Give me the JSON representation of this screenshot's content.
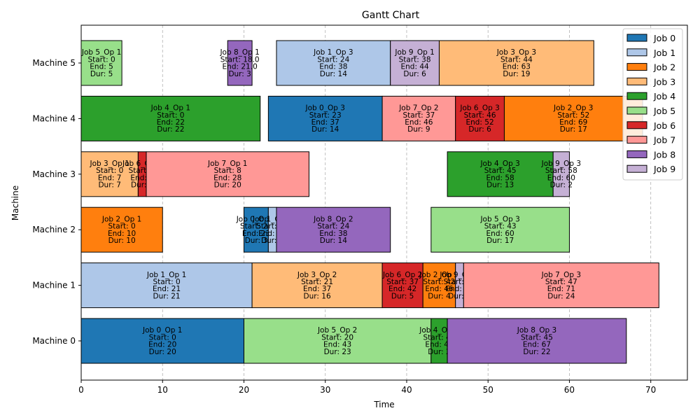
{
  "chart_data": {
    "type": "gantt",
    "title": "Gantt Chart",
    "xlabel": "Time",
    "ylabel": "Machine",
    "xlim": [
      0,
      74.5
    ],
    "xticks": [
      0,
      10,
      20,
      30,
      40,
      50,
      60,
      70
    ],
    "grid": "vertical dashed",
    "legend_position": "top-right",
    "machines": [
      "Machine 0",
      "Machine 1",
      "Machine 2",
      "Machine 3",
      "Machine 4",
      "Machine 5"
    ],
    "jobs": [
      {
        "name": "Job 0",
        "color": "#1f77b4"
      },
      {
        "name": "Job 1",
        "color": "#aec7e8"
      },
      {
        "name": "Job 2",
        "color": "#ff7f0e"
      },
      {
        "name": "Job 3",
        "color": "#ffbb78"
      },
      {
        "name": "Job 4",
        "color": "#2ca02c"
      },
      {
        "name": "Job 5",
        "color": "#98df8a"
      },
      {
        "name": "Job 6",
        "color": "#d62728"
      },
      {
        "name": "Job 7",
        "color": "#ff9896"
      },
      {
        "name": "Job 8",
        "color": "#9467bd"
      },
      {
        "name": "Job 9",
        "color": "#c5b0d5"
      }
    ],
    "tasks": [
      {
        "machine": 0,
        "job": 0,
        "op": "Job 0_Op 1",
        "start": 0,
        "end": 20,
        "dur": 20
      },
      {
        "machine": 0,
        "job": 5,
        "op": "Job 5_Op 2",
        "start": 20,
        "end": 43,
        "dur": 23
      },
      {
        "machine": 0,
        "job": 4,
        "op": "Job 4_Op 2",
        "start": 43,
        "end": 45,
        "dur": 2
      },
      {
        "machine": 0,
        "job": 8,
        "op": "Job 8_Op 3",
        "start": 45,
        "end": 67,
        "dur": 22
      },
      {
        "machine": 1,
        "job": 1,
        "op": "Job 1_Op 1",
        "start": 0,
        "end": 21,
        "dur": 21
      },
      {
        "machine": 1,
        "job": 3,
        "op": "Job 3_Op 2",
        "start": 21,
        "end": 37,
        "dur": 16
      },
      {
        "machine": 1,
        "job": 6,
        "op": "Job 6_Op 2",
        "start": 37,
        "end": 42,
        "dur": 5
      },
      {
        "machine": 1,
        "job": 2,
        "op": "Job 2_Op 2",
        "start": 42,
        "end": 46,
        "dur": 4
      },
      {
        "machine": 1,
        "job": 9,
        "op": "Job 9_Op 2",
        "start": 46,
        "end": 47,
        "dur": 1
      },
      {
        "machine": 1,
        "job": 7,
        "op": "Job 7_Op 3",
        "start": 47,
        "end": 71,
        "dur": 24
      },
      {
        "machine": 2,
        "job": 2,
        "op": "Job 2_Op 1",
        "start": 0,
        "end": 10,
        "dur": 10
      },
      {
        "machine": 2,
        "job": 0,
        "op": "Job 0_Op 2",
        "start": 20,
        "end": 23,
        "dur": 3
      },
      {
        "machine": 2,
        "job": 1,
        "op": "Job 1_Op 2",
        "start": 23,
        "end": 24,
        "dur": 1
      },
      {
        "machine": 2,
        "job": 8,
        "op": "Job 8_Op 2",
        "start": 24,
        "end": 38,
        "dur": 14
      },
      {
        "machine": 2,
        "job": 5,
        "op": "Job 5_Op 3",
        "start": 43,
        "end": 60,
        "dur": 17
      },
      {
        "machine": 3,
        "job": 3,
        "op": "Job 3_Op 1",
        "start": 0,
        "end": 7,
        "dur": 7
      },
      {
        "machine": 3,
        "job": 6,
        "op": "Job 6_Op 1",
        "start": 7,
        "end": 8,
        "dur": 1
      },
      {
        "machine": 3,
        "job": 7,
        "op": "Job 7_Op 1",
        "start": 8,
        "end": 28,
        "dur": 20
      },
      {
        "machine": 3,
        "job": 4,
        "op": "Job 4_Op 3",
        "start": 45,
        "end": 58,
        "dur": 13
      },
      {
        "machine": 3,
        "job": 9,
        "op": "Job 9_Op 3",
        "start": 58,
        "end": 60,
        "dur": 2
      },
      {
        "machine": 4,
        "job": 4,
        "op": "Job 4_Op 1",
        "start": 0,
        "end": 22,
        "dur": 22
      },
      {
        "machine": 4,
        "job": 0,
        "op": "Job 0_Op 3",
        "start": 23,
        "end": 37,
        "dur": 14
      },
      {
        "machine": 4,
        "job": 7,
        "op": "Job 7_Op 2",
        "start": 37,
        "end": 46,
        "dur": 9
      },
      {
        "machine": 4,
        "job": 6,
        "op": "Job 6_Op 3",
        "start": 46,
        "end": 52,
        "dur": 6
      },
      {
        "machine": 4,
        "job": 2,
        "op": "Job 2_Op 3",
        "start": 52,
        "end": 69,
        "dur": 17
      },
      {
        "machine": 5,
        "job": 5,
        "op": "Job 5_Op 1",
        "start": 0,
        "end": 5,
        "dur": 5
      },
      {
        "machine": 5,
        "job": 8,
        "op": "Job 8_Op 1",
        "start": 18.0,
        "end": 21.0,
        "dur": 3,
        "start_text": "18.0",
        "end_text": "21.0"
      },
      {
        "machine": 5,
        "job": 1,
        "op": "Job 1_Op 3",
        "start": 24,
        "end": 38,
        "dur": 14
      },
      {
        "machine": 5,
        "job": 9,
        "op": "Job 9_Op 1",
        "start": 38,
        "end": 44,
        "dur": 6
      },
      {
        "machine": 5,
        "job": 3,
        "op": "Job 3_Op 3",
        "start": 44,
        "end": 63,
        "dur": 19
      }
    ]
  }
}
